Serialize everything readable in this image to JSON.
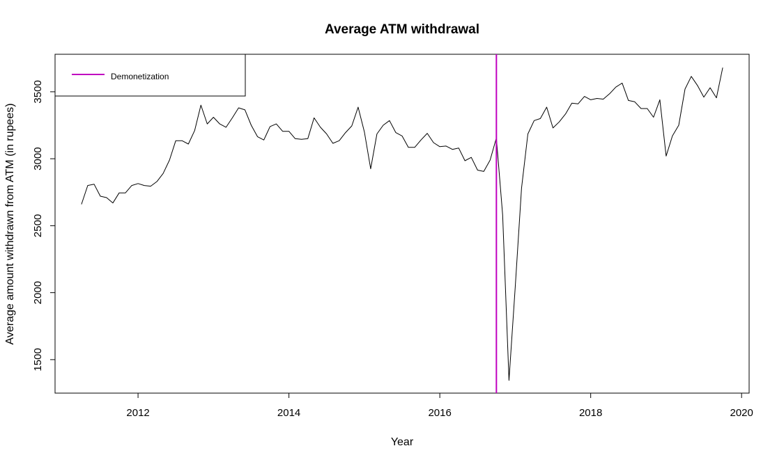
{
  "chart_data": {
    "type": "line",
    "title": "Average ATM withdrawal",
    "xlabel": "Year",
    "ylabel": "Average amount withdrawn from ATM (in rupees)",
    "xlim": [
      2010.9,
      2020.1
    ],
    "ylim": [
      1250,
      3780
    ],
    "x_ticks": [
      2012,
      2014,
      2016,
      2018,
      2020
    ],
    "y_ticks": [
      1500,
      2000,
      2500,
      3000,
      3500
    ],
    "grid": false,
    "legend": {
      "position": "top-left",
      "entries": [
        {
          "label": "Demonetization",
          "color": "#c000c0"
        }
      ]
    },
    "vline": {
      "x": 2016.75,
      "label": "Demonetization",
      "color": "#c000c0"
    },
    "series": [
      {
        "color": "#000000",
        "x": [
          2011.25,
          2011.333,
          2011.417,
          2011.5,
          2011.583,
          2011.667,
          2011.75,
          2011.833,
          2011.917,
          2012.0,
          2012.083,
          2012.167,
          2012.25,
          2012.333,
          2012.417,
          2012.5,
          2012.583,
          2012.667,
          2012.75,
          2012.833,
          2012.917,
          2013.0,
          2013.083,
          2013.167,
          2013.25,
          2013.333,
          2013.417,
          2013.5,
          2013.583,
          2013.667,
          2013.75,
          2013.833,
          2013.917,
          2014.0,
          2014.083,
          2014.167,
          2014.25,
          2014.333,
          2014.417,
          2014.5,
          2014.583,
          2014.667,
          2014.75,
          2014.833,
          2014.917,
          2015.0,
          2015.083,
          2015.167,
          2015.25,
          2015.333,
          2015.417,
          2015.5,
          2015.583,
          2015.667,
          2015.75,
          2015.833,
          2015.917,
          2016.0,
          2016.083,
          2016.167,
          2016.25,
          2016.333,
          2016.417,
          2016.5,
          2016.583,
          2016.667,
          2016.75,
          2016.833,
          2016.917,
          2017.0,
          2017.083,
          2017.167,
          2017.25,
          2017.333,
          2017.417,
          2017.5,
          2017.583,
          2017.667,
          2017.75,
          2017.833,
          2017.917,
          2018.0,
          2018.083,
          2018.167,
          2018.25,
          2018.333,
          2018.417,
          2018.5,
          2018.583,
          2018.667,
          2018.75,
          2018.833,
          2018.917,
          2019.0,
          2019.083,
          2019.167,
          2019.25,
          2019.333,
          2019.417,
          2019.5,
          2019.583,
          2019.667,
          2019.75
        ],
        "y": [
          2660,
          2800,
          2810,
          2720,
          2710,
          2670,
          2745,
          2745,
          2800,
          2815,
          2800,
          2795,
          2830,
          2890,
          2990,
          3135,
          3135,
          3110,
          3210,
          3400,
          3260,
          3310,
          3260,
          3235,
          3305,
          3380,
          3365,
          3250,
          3165,
          3140,
          3240,
          3260,
          3205,
          3205,
          3150,
          3145,
          3150,
          3305,
          3235,
          3185,
          3115,
          3135,
          3195,
          3245,
          3385,
          3200,
          2925,
          3185,
          3250,
          3285,
          3195,
          3170,
          3085,
          3085,
          3140,
          3190,
          3120,
          3090,
          3095,
          3070,
          3080,
          2985,
          3010,
          2915,
          2905,
          2990,
          3155,
          2580,
          1345,
          2045,
          2780,
          3185,
          3285,
          3300,
          3385,
          3230,
          3275,
          3335,
          3415,
          3410,
          3465,
          3440,
          3450,
          3445,
          3485,
          3535,
          3565,
          3435,
          3425,
          3375,
          3375,
          3310,
          3440,
          3020,
          3170,
          3250,
          3520,
          3615,
          3545,
          3460,
          3530,
          3455,
          3680
        ]
      }
    ]
  }
}
